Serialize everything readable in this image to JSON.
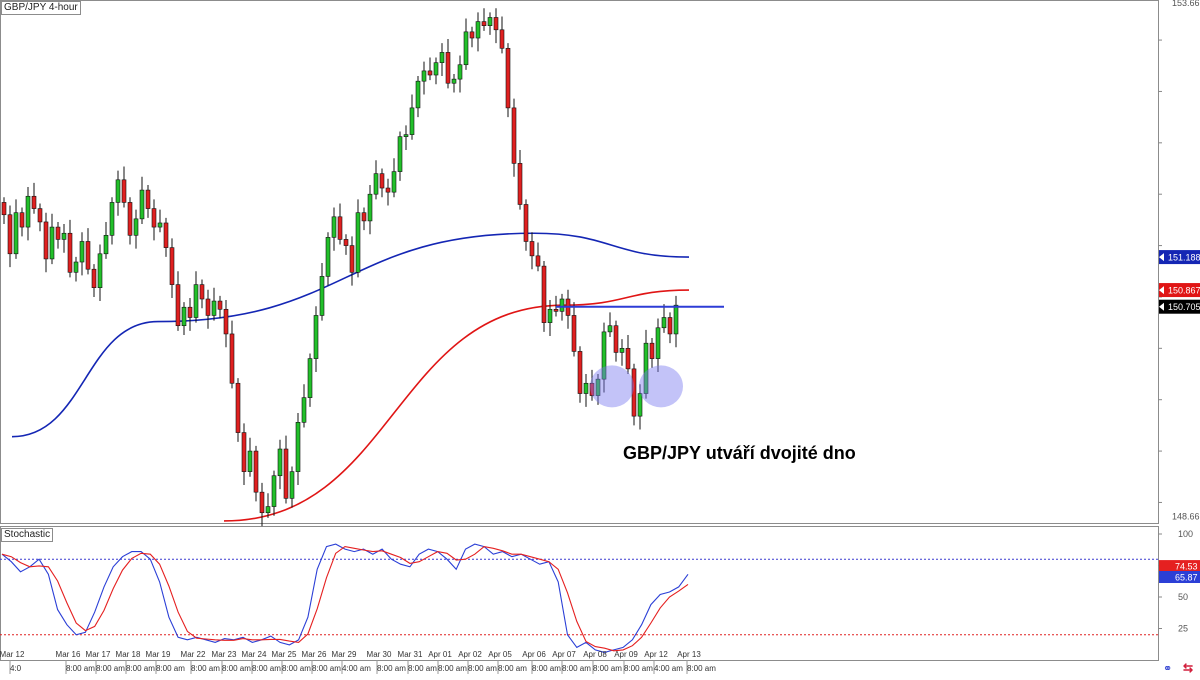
{
  "window": {
    "pair_label": "GBP/JPY 4-hour",
    "indicator_label": "Stochastic"
  },
  "annotation": "GBP/JPY utváří dvojité dno",
  "colors": {
    "bull": "#22c02a",
    "bear": "#e02020",
    "sma_short": "#e01515",
    "sma_long": "#1426b4",
    "neckline": "#2d3cd6",
    "highlight": "#7b7bf0",
    "stoch_k": "#2b3fd6",
    "stoch_d": "#e52020",
    "overbought_line": "#3a3ad0",
    "oversold_line": "#e02020"
  },
  "icons": {
    "tool": "link-icon",
    "close": "close-icon"
  },
  "chart_data": [
    {
      "type": "candlestick",
      "title": "GBP/JPY 4-hour",
      "ylim": [
        148.6,
        153.69
      ],
      "y_ticks": [
        153.661,
        148.661
      ],
      "price_tags": [
        {
          "label": "151.188",
          "value": 151.188,
          "color": "#1426b4"
        },
        {
          "label": "150.867",
          "value": 150.867,
          "color": "#e01515"
        },
        {
          "label": "150.705",
          "value": 150.705,
          "color": "#000000"
        }
      ],
      "x_labels": [
        "Mar 12",
        "Mar 16",
        "Mar 17",
        "Mar 18",
        "Mar 19",
        "Mar 22",
        "Mar 23",
        "Mar 24",
        "Mar 25",
        "Mar 26",
        "Mar 29",
        "Mar 30",
        "Mar 31",
        "Apr 01",
        "Apr 02",
        "Apr 05",
        "Apr 06",
        "Apr 07",
        "Apr 08",
        "Apr 09",
        "Apr 12",
        "Apr 13"
      ],
      "x_sublabels": [
        "4:0",
        "8:00 am",
        "8:00 am",
        "8:00 am",
        "8:00 am",
        "8:00 am",
        "8:00 am",
        "8:00 am",
        "8:00 am",
        "8:00 am",
        "4:00 am",
        "8:00 am",
        "8:00 am",
        "8:00 am",
        "8:00 am",
        "8:00 am",
        "8:00 am",
        "8:00 am",
        "8:00 am",
        "8:00 am",
        "4:00 am",
        "8:00 am"
      ],
      "closes": [
        151.6,
        151.22,
        151.62,
        151.48,
        151.78,
        151.66,
        151.53,
        151.17,
        151.48,
        151.36,
        151.42,
        151.04,
        151.14,
        151.34,
        151.07,
        150.89,
        151.22,
        151.4,
        151.72,
        151.94,
        151.72,
        151.4,
        151.56,
        151.84,
        151.66,
        151.48,
        151.52,
        151.28,
        150.92,
        150.52,
        150.7,
        150.6,
        150.92,
        150.78,
        150.62,
        150.76,
        150.68,
        150.44,
        149.96,
        149.48,
        149.1,
        149.3,
        148.9,
        148.7,
        148.76,
        149.06,
        149.32,
        148.84,
        149.1,
        149.58,
        149.82,
        150.2,
        150.62,
        151.0,
        151.38,
        151.58,
        151.36,
        151.3,
        151.04,
        151.62,
        151.54,
        151.8,
        152.0,
        151.86,
        151.82,
        152.02,
        152.36,
        152.38,
        152.64,
        152.9,
        153.0,
        152.96,
        153.08,
        153.18,
        152.88,
        152.92,
        153.06,
        153.38,
        153.32,
        153.48,
        153.44,
        153.52,
        153.4,
        153.22,
        152.64,
        152.1,
        151.7,
        151.34,
        151.2,
        151.1,
        150.55,
        150.68,
        150.66,
        150.78,
        150.62,
        150.27,
        149.86,
        149.96,
        149.84,
        150.0,
        150.46,
        150.52,
        150.26,
        150.3,
        150.1,
        149.64,
        149.86,
        150.35,
        150.2,
        150.5,
        150.6,
        150.44,
        150.72
      ],
      "sma_short_ends": [
        {
          "x": "Mar 23",
          "y": 148.62
        },
        {
          "x": "Apr 07",
          "y": 150.72
        },
        {
          "x": "Apr 13",
          "y": 150.867
        }
      ],
      "sma_long_ends": [
        {
          "x": "Mar 12",
          "y": 149.44
        },
        {
          "x": "Mar 19",
          "y": 150.56
        },
        {
          "x": "Apr 06",
          "y": 151.42
        },
        {
          "x": "Apr 13",
          "y": 151.188
        }
      ],
      "neckline": 150.705,
      "bottoms": [
        "Apr 08",
        "Apr 09"
      ]
    },
    {
      "type": "line",
      "title": "Stochastic",
      "ylim": [
        0,
        100
      ],
      "y_ticks": [
        100,
        75,
        50,
        25,
        0
      ],
      "levels": [
        80,
        20
      ],
      "series": [
        {
          "label": "74.53",
          "last": 74.53,
          "color": "#e52020"
        },
        {
          "label": "65.87",
          "last": 65.87,
          "color": "#2b3fd6"
        }
      ],
      "k_values": [
        84,
        78,
        70,
        74,
        80,
        68,
        40,
        28,
        20,
        22,
        38,
        58,
        74,
        82,
        86,
        86,
        80,
        62,
        34,
        18,
        16,
        18,
        16,
        14,
        17,
        16,
        18,
        14,
        16,
        19,
        14,
        12,
        16,
        34,
        72,
        90,
        92,
        88,
        86,
        88,
        84,
        88,
        80,
        76,
        74,
        84,
        88,
        86,
        80,
        72,
        88,
        92,
        90,
        84,
        86,
        82,
        84,
        80,
        76,
        78,
        62,
        20,
        10,
        14,
        8,
        6,
        8,
        10,
        16,
        28,
        44,
        52,
        54,
        58,
        68
      ]
    }
  ]
}
